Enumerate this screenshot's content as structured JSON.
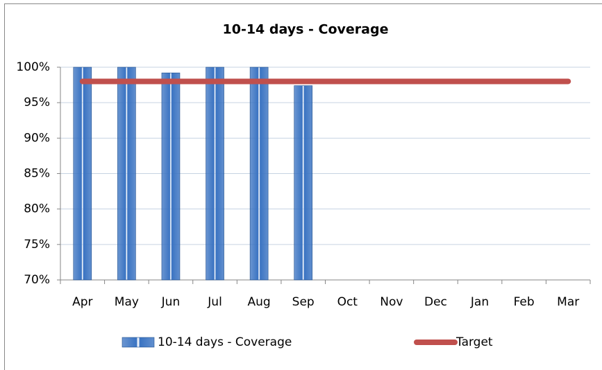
{
  "chart_data": {
    "type": "bar",
    "title": "10-14 days - Coverage",
    "categories": [
      "Apr",
      "May",
      "Jun",
      "Jul",
      "Aug",
      "Sep",
      "Oct",
      "Nov",
      "Dec",
      "Jan",
      "Feb",
      "Mar"
    ],
    "series": [
      {
        "name": "10-14 days - Coverage",
        "color": "#3a73c2",
        "values": [
          100,
          100,
          99.2,
          100,
          100,
          97.4,
          null,
          null,
          null,
          null,
          null,
          null
        ]
      },
      {
        "name": "Target",
        "color": "#c0504d",
        "type": "line",
        "values": [
          98,
          98,
          98,
          98,
          98,
          98,
          98,
          98,
          98,
          98,
          98,
          98
        ]
      }
    ],
    "ylim": [
      70,
      100
    ],
    "yticks": [
      {
        "value": 70,
        "label": "70%"
      },
      {
        "value": 75,
        "label": "75%"
      },
      {
        "value": 80,
        "label": "80%"
      },
      {
        "value": 85,
        "label": "85%"
      },
      {
        "value": 90,
        "label": "90%"
      },
      {
        "value": 95,
        "label": "95%"
      },
      {
        "value": 100,
        "label": "100%"
      }
    ],
    "grid": true,
    "legend": "bottom"
  }
}
